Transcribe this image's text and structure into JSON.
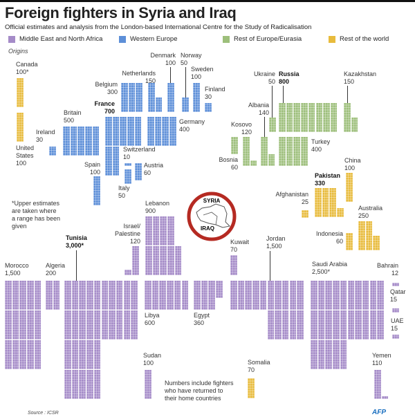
{
  "title": "Foreign fighters in Syria and Iraq",
  "subtitle": "Official estimates and analysis from the London-based International Centre for the Study of Radicalisation",
  "origins_label": "Origins",
  "footnote": "*Upper estimates\nare taken where\na range has been\ngiven",
  "note": "Numbers include fighters\nwho have returned to\ntheir home countries",
  "source": "Source : ICSR",
  "logo": "AFP",
  "map_labels": {
    "syria": "SYRIA",
    "iraq": "IRAQ"
  },
  "colors": {
    "mena": "#a58bc8",
    "western_europe": "#5d8fd8",
    "rest_europe": "#9dbf7b",
    "rest_world": "#e8bb3c",
    "circle": "#b52a22"
  },
  "chart_data": {
    "type": "pictogram",
    "title": "Foreign fighters in Syria and Iraq",
    "legend": [
      {
        "key": "mena",
        "label": "Middle East and North Africa"
      },
      {
        "key": "western_europe",
        "label": "Western Europe"
      },
      {
        "key": "rest_europe",
        "label": "Rest of Europe/Eurasia"
      },
      {
        "key": "rest_world",
        "label": "Rest of the world"
      }
    ],
    "countries": [
      {
        "name": "Canada",
        "value": 100,
        "value_label": "100*",
        "region": "rest_world"
      },
      {
        "name": "United\nStates",
        "value": 100,
        "value_label": "100",
        "region": "rest_world"
      },
      {
        "name": "Ireland",
        "value": 30,
        "value_label": "30",
        "region": "western_europe"
      },
      {
        "name": "Britain",
        "value": 500,
        "value_label": "500",
        "region": "western_europe"
      },
      {
        "name": "Belgium",
        "value": 300,
        "value_label": "300",
        "region": "western_europe"
      },
      {
        "name": "France",
        "value": 700,
        "value_label": "700",
        "region": "western_europe"
      },
      {
        "name": "Netherlands",
        "value": 150,
        "value_label": "150",
        "region": "western_europe"
      },
      {
        "name": "Denmark",
        "value": 100,
        "value_label": "100",
        "region": "western_europe"
      },
      {
        "name": "Norway",
        "value": 50,
        "value_label": "50",
        "region": "western_europe"
      },
      {
        "name": "Sweden",
        "value": 100,
        "value_label": "100",
        "region": "western_europe"
      },
      {
        "name": "Finland",
        "value": 30,
        "value_label": "30",
        "region": "western_europe"
      },
      {
        "name": "Germany",
        "value": 400,
        "value_label": "400",
        "region": "western_europe"
      },
      {
        "name": "Switzerland",
        "value": 10,
        "value_label": "10",
        "region": "western_europe"
      },
      {
        "name": "Italy",
        "value": 50,
        "value_label": "50",
        "region": "western_europe"
      },
      {
        "name": "Austria",
        "value": 60,
        "value_label": "60",
        "region": "western_europe"
      },
      {
        "name": "Spain",
        "value": 100,
        "value_label": "100",
        "region": "western_europe"
      },
      {
        "name": "Ukraine",
        "value": 50,
        "value_label": "50",
        "region": "rest_europe"
      },
      {
        "name": "Russia",
        "value": 800,
        "value_label": "800",
        "region": "rest_europe"
      },
      {
        "name": "Kazakhstan",
        "value": 150,
        "value_label": "150",
        "region": "rest_europe"
      },
      {
        "name": "Albania",
        "value": 140,
        "value_label": "140",
        "region": "rest_europe"
      },
      {
        "name": "Kosovo",
        "value": 120,
        "value_label": "120",
        "region": "rest_europe"
      },
      {
        "name": "Bosnia",
        "value": 60,
        "value_label": "60",
        "region": "rest_europe"
      },
      {
        "name": "Turkey",
        "value": 400,
        "value_label": "400",
        "region": "rest_europe"
      },
      {
        "name": "China",
        "value": 100,
        "value_label": "100",
        "region": "rest_world"
      },
      {
        "name": "Pakistan",
        "value": 330,
        "value_label": "330",
        "region": "rest_world"
      },
      {
        "name": "Afghanistan",
        "value": 25,
        "value_label": "25",
        "region": "rest_world"
      },
      {
        "name": "Australia",
        "value": 250,
        "value_label": "250",
        "region": "rest_world"
      },
      {
        "name": "Indonesia",
        "value": 60,
        "value_label": "60",
        "region": "rest_world"
      },
      {
        "name": "Somalia",
        "value": 70,
        "value_label": "70",
        "region": "rest_world"
      },
      {
        "name": "Lebanon",
        "value": 900,
        "value_label": "900",
        "region": "mena"
      },
      {
        "name": "Israel/\nPalestine",
        "value": 120,
        "value_label": "120",
        "region": "mena"
      },
      {
        "name": "Tunisia",
        "value": 3000,
        "value_label": "3,000*",
        "region": "mena"
      },
      {
        "name": "Morocco",
        "value": 1500,
        "value_label": "1,500",
        "region": "mena"
      },
      {
        "name": "Algeria",
        "value": 200,
        "value_label": "200",
        "region": "mena"
      },
      {
        "name": "Libya",
        "value": 600,
        "value_label": "600",
        "region": "mena"
      },
      {
        "name": "Egypt",
        "value": 360,
        "value_label": "360",
        "region": "mena"
      },
      {
        "name": "Kuwait",
        "value": 70,
        "value_label": "70",
        "region": "mena"
      },
      {
        "name": "Jordan",
        "value": 1500,
        "value_label": "1,500",
        "region": "mena"
      },
      {
        "name": "Saudi Arabia",
        "value": 2500,
        "value_label": "2,500*",
        "region": "mena"
      },
      {
        "name": "Bahrain",
        "value": 12,
        "value_label": "12",
        "region": "mena"
      },
      {
        "name": "Qatar",
        "value": 15,
        "value_label": "15",
        "region": "mena"
      },
      {
        "name": "UAE",
        "value": 15,
        "value_label": "15",
        "region": "mena"
      },
      {
        "name": "Yemen",
        "value": 110,
        "value_label": "110",
        "region": "mena"
      },
      {
        "name": "Sudan",
        "value": 100,
        "value_label": "100",
        "region": "mena"
      }
    ]
  }
}
